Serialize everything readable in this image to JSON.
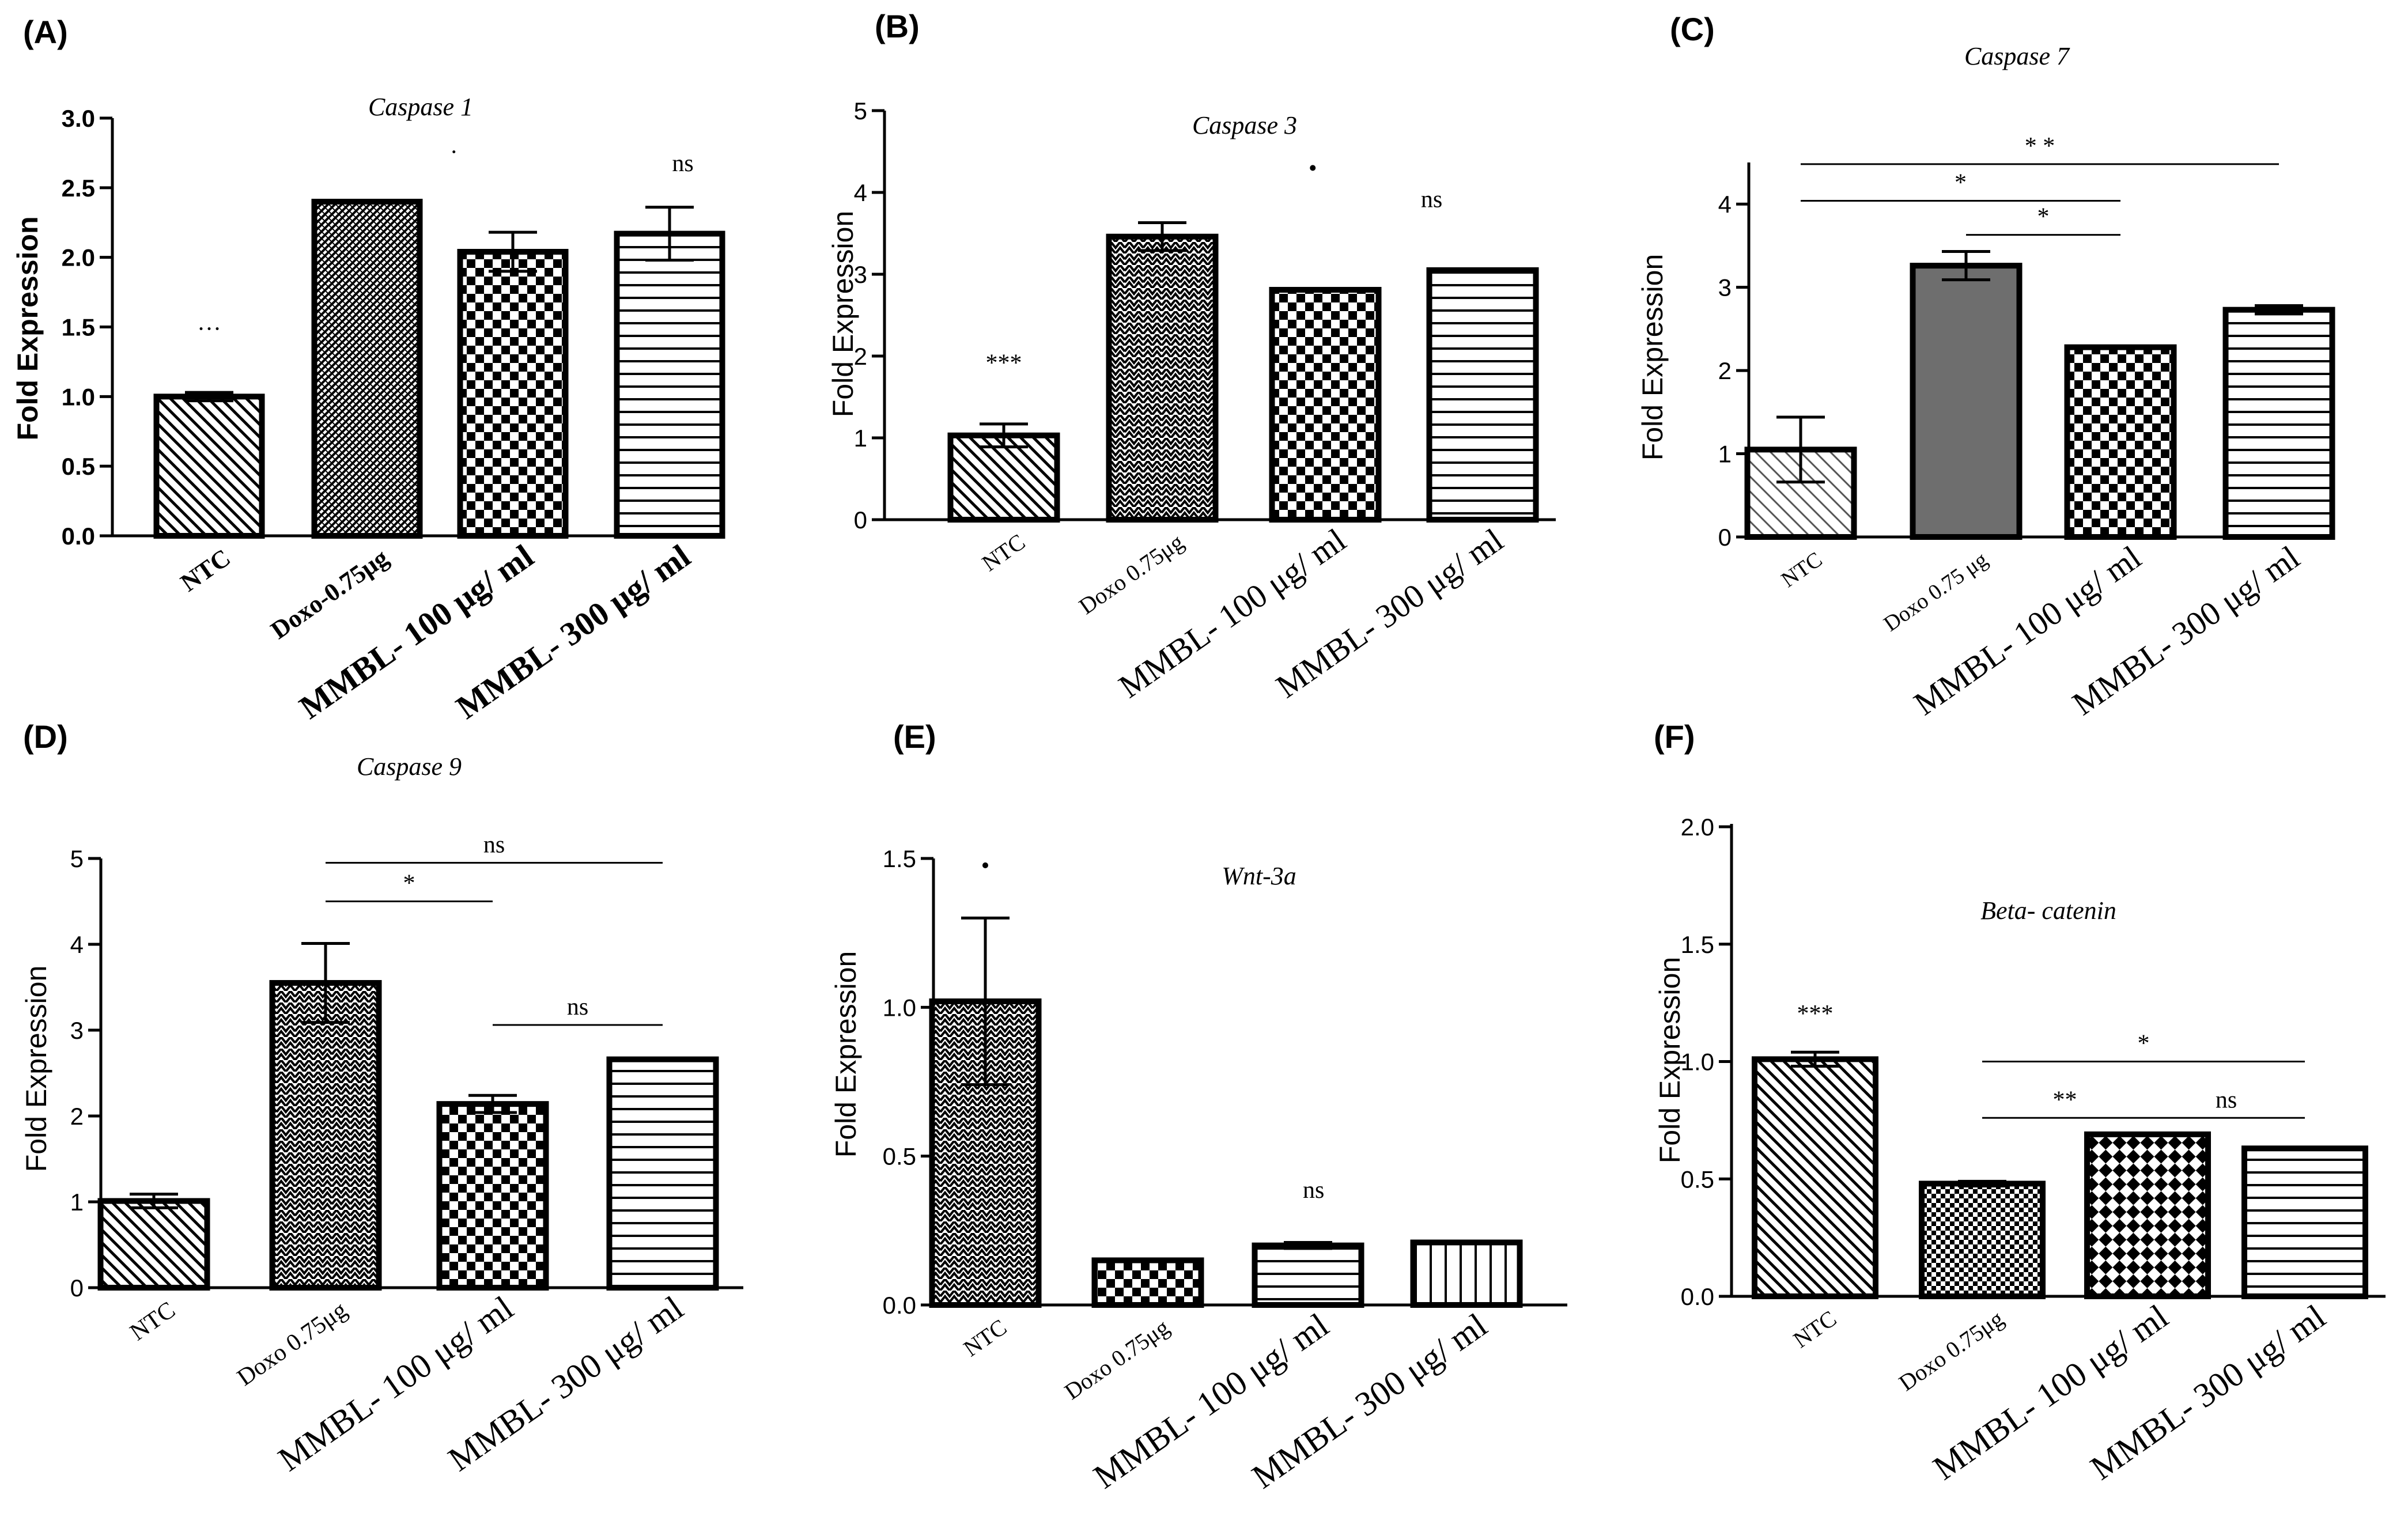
{
  "chart_data": [
    {
      "type": "bar",
      "panel": "(A)",
      "title": "Caspase 1",
      "ylabel": "Fold Expression",
      "xlabel": "",
      "ylim": [
        0,
        3
      ],
      "yticks": [
        "0.0",
        "0.5",
        "1.0",
        "1.5",
        "2.0",
        "2.5",
        "3.0"
      ],
      "categories": [
        "NTC",
        "Doxo-0.75μg",
        "MMBL- 100 μg/ ml",
        "MMBL- 300 μg/ ml"
      ],
      "values": [
        1.0,
        2.4,
        2.04,
        2.17
      ],
      "errors": [
        0.03,
        0.01,
        0.14,
        0.19
      ],
      "patterns": [
        "diag-back",
        "diag-fine",
        "check",
        "hlines"
      ],
      "annotations": [
        {
          "text": "···",
          "x": 0,
          "y": 1.43
        },
        {
          "text": "·",
          "x": 1.55,
          "y": 2.7
        },
        {
          "text": "ns",
          "x": 3,
          "y": 2.62
        }
      ],
      "brackets": []
    },
    {
      "type": "bar",
      "panel": "(B)",
      "title": "Caspase 3",
      "ylabel": "Fold Expression",
      "xlabel": "",
      "ylim": [
        0,
        5
      ],
      "yticks": [
        "0",
        "1",
        "2",
        "3",
        "4",
        "5"
      ],
      "categories": [
        "NTC",
        "Doxo 0.75μg",
        "MMBL- 100 μg/ ml",
        "MMBL- 300 μg/ ml"
      ],
      "values": [
        1.03,
        3.46,
        2.81,
        3.05
      ],
      "errors": [
        0.14,
        0.17,
        0.0,
        0.0
      ],
      "patterns": [
        "diag-back",
        "zigzag",
        "check",
        "hlines"
      ],
      "annotations": [
        {
          "text": "***",
          "x": 0,
          "y": 1.82
        },
        {
          "text": "•",
          "x": 1.95,
          "y": 4.2
        },
        {
          "text": "ns",
          "x": 2.7,
          "y": 3.82
        }
      ],
      "brackets": []
    },
    {
      "type": "bar",
      "panel": "(C)",
      "title": "Caspase 7",
      "ylabel": "Fold Expression",
      "xlabel": "",
      "ylim": [
        0,
        4.5
      ],
      "yticks": [
        "0",
        "1",
        "2",
        "3",
        "4"
      ],
      "categories": [
        "NTC",
        "Doxo 0.75 μg",
        "MMBL- 100 μg/ ml",
        "MMBL- 300 μg/ ml"
      ],
      "values": [
        1.05,
        3.26,
        2.28,
        2.73
      ],
      "errors": [
        0.39,
        0.17,
        0.0,
        0.05
      ],
      "patterns": [
        "diag-light",
        "solid-gray",
        "check",
        "hlines"
      ],
      "annotations": [],
      "brackets": [
        {
          "from": 0,
          "to": 3,
          "y": 4.48,
          "text": "* *"
        },
        {
          "from": 0,
          "to": 2,
          "y": 4.04,
          "text": "*"
        },
        {
          "from": 1,
          "to": 2,
          "y": 3.63,
          "text": "*"
        }
      ]
    },
    {
      "type": "bar",
      "panel": "(D)",
      "title": "Caspase 9",
      "ylabel": "Fold Expression",
      "xlabel": "",
      "ylim": [
        0,
        5
      ],
      "yticks": [
        "0",
        "1",
        "2",
        "3",
        "4",
        "5"
      ],
      "categories": [
        "NTC",
        "Doxo 0.75μg",
        "MMBL- 100 μg/ ml",
        "MMBL- 300 μg/ ml"
      ],
      "values": [
        1.01,
        3.55,
        2.14,
        2.66
      ],
      "errors": [
        0.08,
        0.46,
        0.1,
        0.0
      ],
      "patterns": [
        "diag-back",
        "zigzag",
        "check",
        "hlines"
      ],
      "annotations": [],
      "brackets": [
        {
          "from": 1,
          "to": 3,
          "y": 4.95,
          "text": "ns"
        },
        {
          "from": 1,
          "to": 2,
          "y": 4.5,
          "text": "*"
        },
        {
          "from": 2,
          "to": 3,
          "y": 3.06,
          "text": "ns"
        }
      ]
    },
    {
      "type": "bar",
      "panel": "(E)",
      "title": "Wnt-3a",
      "ylabel": "Fold Expression",
      "xlabel": "",
      "ylim": [
        0,
        1.5
      ],
      "yticks": [
        "0.0",
        "0.5",
        "1.0",
        "1.5"
      ],
      "categories": [
        "NTC",
        "Doxo 0.75μg",
        "MMBL- 100 μg/ ml",
        "MMBL- 300 μg/ ml"
      ],
      "values": [
        1.02,
        0.15,
        0.2,
        0.21
      ],
      "errors": [
        0.28,
        0.0,
        0.01,
        0.0
      ],
      "patterns": [
        "zigzag",
        "check",
        "hlines",
        "vlines"
      ],
      "annotations": [
        {
          "text": "•",
          "x": 0,
          "y": 1.45
        },
        {
          "text": "ns",
          "x": 2.02,
          "y": 0.36
        }
      ],
      "brackets": []
    },
    {
      "type": "bar",
      "panel": "(F)",
      "title": "Beta- catenin",
      "ylabel": "Fold Expression",
      "xlabel": "",
      "ylim": [
        0,
        2
      ],
      "yticks": [
        "0.0",
        "0.5",
        "1.0",
        "1.5",
        "2.0"
      ],
      "categories": [
        "NTC",
        "Doxo 0.75μg",
        "MMBL- 100 μg/ ml",
        "MMBL- 300 μg/ ml"
      ],
      "values": [
        1.01,
        0.48,
        0.69,
        0.63
      ],
      "errors": [
        0.03,
        0.01,
        0.0,
        0.0
      ],
      "patterns": [
        "diag-back",
        "check-fine",
        "diag-check",
        "hlines"
      ],
      "annotations": [
        {
          "text": "***",
          "x": 0,
          "y": 1.17
        }
      ],
      "brackets": [
        {
          "from": 1,
          "to": 3,
          "y": 1.0,
          "text": "*"
        },
        {
          "from": 1,
          "to": 2,
          "y": 0.76,
          "text": "**"
        },
        {
          "from": 2,
          "to": 3,
          "y": 0.76,
          "text": "ns"
        }
      ]
    }
  ]
}
